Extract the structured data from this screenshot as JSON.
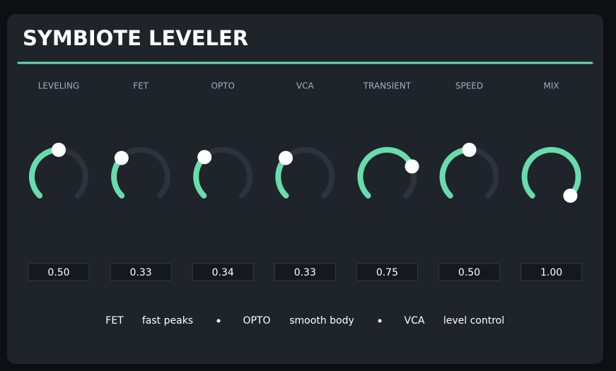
{
  "header": {
    "title": "SYMBIOTE LEVELER"
  },
  "knobs": [
    {
      "label": "LEVELING",
      "value": 0.5,
      "value_label": "0.50"
    },
    {
      "label": "FET",
      "value": 0.33,
      "value_label": "0.33"
    },
    {
      "label": "OPTO",
      "value": 0.34,
      "value_label": "0.34"
    },
    {
      "label": "VCA",
      "value": 0.33,
      "value_label": "0.33"
    },
    {
      "label": "TRANSIENT",
      "value": 0.75,
      "value_label": "0.75"
    },
    {
      "label": "SPEED",
      "value": 0.5,
      "value_label": "0.50"
    },
    {
      "label": "MIX",
      "value": 1,
      "value_label": "1.00"
    }
  ],
  "footer": [
    {
      "name": "FET",
      "desc": "fast peaks"
    },
    {
      "name": "OPTO",
      "desc": "smooth body"
    },
    {
      "name": "VCA",
      "desc": "level control"
    }
  ]
}
